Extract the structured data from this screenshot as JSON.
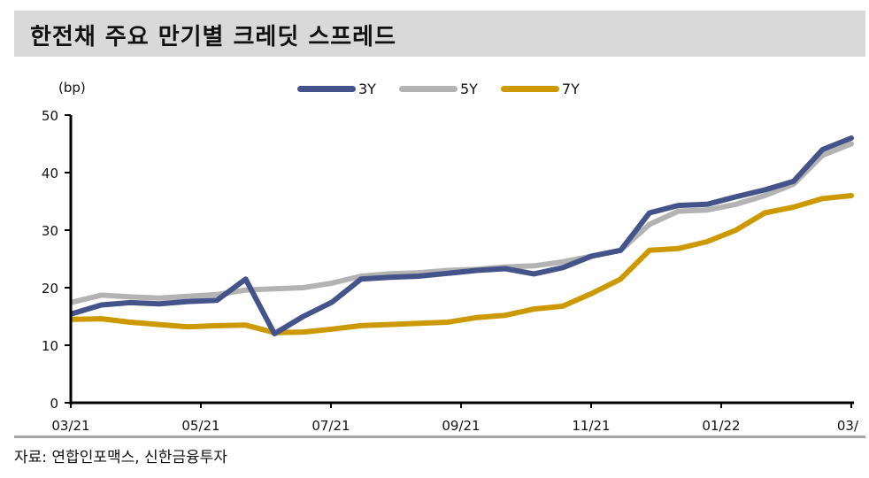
{
  "header": {
    "title": "한전채 주요 만기별 크레딧 스프레드"
  },
  "footer": {
    "source": "자료: 연합인포맥스, 신한금융투자"
  },
  "chart_data": {
    "type": "line",
    "title": "한전채 주요 만기별 크레딧 스프레드",
    "ylabel": "(bp)",
    "xlabel": "",
    "ylim": [
      0,
      50
    ],
    "yticks": [
      0,
      10,
      20,
      30,
      40,
      50
    ],
    "xtick_labels": [
      "03/21",
      "05/21",
      "07/21",
      "09/21",
      "11/21",
      "01/22",
      "03/"
    ],
    "grid": false,
    "legend_position": "top",
    "x": [
      "03/21",
      "03/21b",
      "04/21",
      "04/21b",
      "05/21",
      "05/21b",
      "06/21",
      "06/21b",
      "06/21c",
      "07/21",
      "07/21b",
      "08/21",
      "08/21b",
      "09/21",
      "09/21b",
      "10/21",
      "10/21b",
      "10/21c",
      "11/21",
      "11/21b",
      "12/21",
      "12/21b",
      "12/21c",
      "01/22",
      "01/22b",
      "02/22",
      "02/22b",
      "03/22"
    ],
    "series": [
      {
        "name": "3Y",
        "color": "#44538a",
        "values": [
          15.5,
          17.0,
          17.4,
          17.2,
          17.6,
          17.8,
          21.5,
          12.0,
          15.0,
          17.5,
          21.5,
          21.8,
          22.0,
          22.5,
          23.0,
          23.3,
          22.4,
          23.5,
          25.5,
          26.5,
          33.0,
          34.3,
          34.5,
          35.8,
          37.0,
          38.5,
          44.0,
          46.0
        ]
      },
      {
        "name": "5Y",
        "color": "#b3b3b3",
        "values": [
          17.5,
          18.7,
          18.4,
          18.2,
          18.5,
          18.8,
          19.6,
          19.8,
          20.0,
          20.8,
          22.0,
          22.4,
          22.6,
          23.0,
          23.2,
          23.6,
          23.8,
          24.5,
          25.5,
          26.5,
          31.0,
          33.3,
          33.5,
          34.5,
          36.0,
          38.0,
          43.0,
          45.0
        ]
      },
      {
        "name": "7Y",
        "color": "#cc9a00",
        "values": [
          14.5,
          14.6,
          14.0,
          13.6,
          13.2,
          13.4,
          13.5,
          12.2,
          12.3,
          12.8,
          13.4,
          13.6,
          13.8,
          14.0,
          14.8,
          15.2,
          16.3,
          16.8,
          19.0,
          21.5,
          26.5,
          26.8,
          28.0,
          30.0,
          33.0,
          34.0,
          35.5,
          36.0
        ]
      }
    ]
  }
}
